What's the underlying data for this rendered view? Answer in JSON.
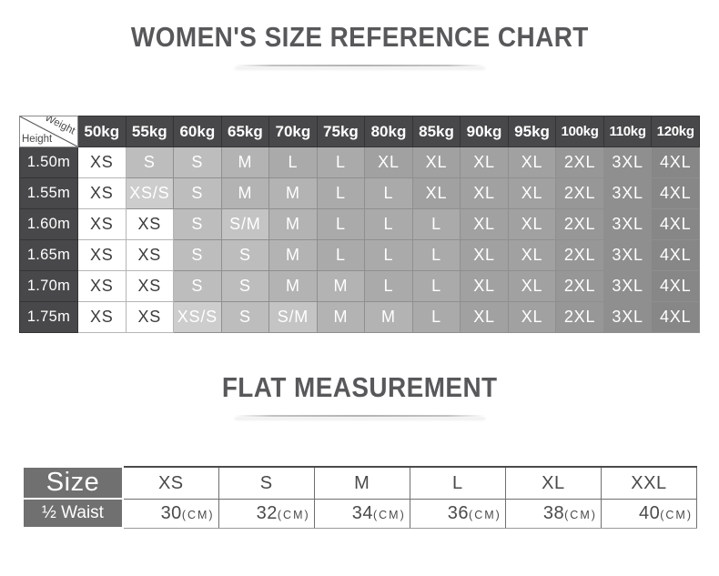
{
  "titles": {
    "main": "WOMEN'S SIZE REFERENCE CHART",
    "flat": "FLAT MEASUREMENT"
  },
  "chart_data": [
    {
      "type": "table",
      "title": "WOMEN'S SIZE REFERENCE CHART",
      "corner": {
        "top_right": "Weight",
        "bottom_left": "Height"
      },
      "columns": [
        "50kg",
        "55kg",
        "60kg",
        "65kg",
        "70kg",
        "75kg",
        "80kg",
        "85kg",
        "90kg",
        "95kg",
        "100kg",
        "110kg",
        "120kg"
      ],
      "rows": [
        {
          "height": "1.50m",
          "sizes": [
            "XS",
            "S",
            "S",
            "M",
            "L",
            "L",
            "XL",
            "XL",
            "XL",
            "XL",
            "2XL",
            "3XL",
            "4XL"
          ]
        },
        {
          "height": "1.55m",
          "sizes": [
            "XS",
            "XS/S",
            "S",
            "M",
            "M",
            "L",
            "L",
            "XL",
            "XL",
            "XL",
            "2XL",
            "3XL",
            "4XL"
          ]
        },
        {
          "height": "1.60m",
          "sizes": [
            "XS",
            "XS",
            "S",
            "S/M",
            "M",
            "L",
            "L",
            "L",
            "XL",
            "XL",
            "2XL",
            "3XL",
            "4XL"
          ]
        },
        {
          "height": "1.65m",
          "sizes": [
            "XS",
            "XS",
            "S",
            "S",
            "M",
            "L",
            "L",
            "L",
            "XL",
            "XL",
            "2XL",
            "3XL",
            "4XL"
          ]
        },
        {
          "height": "1.70m",
          "sizes": [
            "XS",
            "XS",
            "S",
            "S",
            "M",
            "M",
            "L",
            "L",
            "XL",
            "XL",
            "2XL",
            "3XL",
            "4XL"
          ]
        },
        {
          "height": "1.75m",
          "sizes": [
            "XS",
            "XS",
            "XS/S",
            "S",
            "S/M",
            "M",
            "M",
            "L",
            "XL",
            "XL",
            "2XL",
            "3XL",
            "4XL"
          ]
        }
      ]
    },
    {
      "type": "table",
      "title": "FLAT MEASUREMENT",
      "row_headers": [
        "Size",
        "½ Waist"
      ],
      "columns": [
        "XS",
        "S",
        "M",
        "L",
        "XL",
        "XXL"
      ],
      "values": [
        {
          "number": "30",
          "unit": "(CM)"
        },
        {
          "number": "32",
          "unit": "(CM)"
        },
        {
          "number": "34",
          "unit": "(CM)"
        },
        {
          "number": "36",
          "unit": "(CM)"
        },
        {
          "number": "38",
          "unit": "(CM)"
        },
        {
          "number": "40",
          "unit": "(CM)"
        }
      ]
    }
  ],
  "colors": {
    "title_text": "#58585a",
    "chart_header_bg": "#48484a",
    "chart_header_text": "#ffffff",
    "xs_cell_text": "#3c3c3c",
    "gray_cell_text": "#ffffff",
    "flat_header_bg": "#707070",
    "size_cell_bg": {
      "XS": "#ffffff",
      "XS/S": "#cdcdcd",
      "S": "#bdbdbd",
      "S/M": "#c4c4c4",
      "M": "#b3b3b3",
      "L": "#aaaaaa",
      "XL": "#a1a1a1",
      "2XL": "#979797",
      "3XL": "#8f8f8f",
      "4XL": "#878787"
    }
  }
}
